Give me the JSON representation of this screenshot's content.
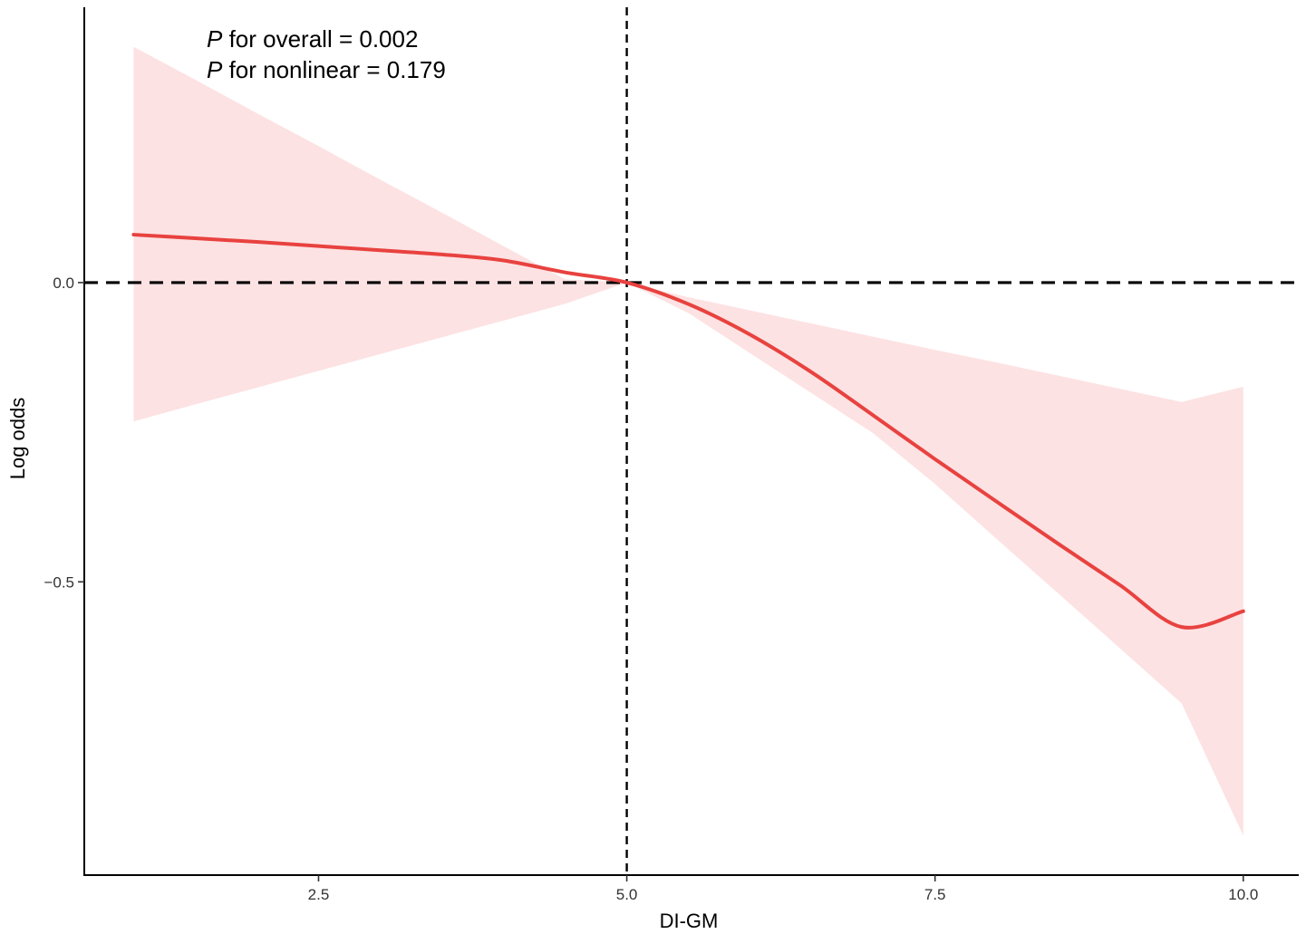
{
  "chart_data": {
    "type": "line",
    "xlabel": "DI-GM",
    "ylabel": "Log odds",
    "x_ticks": [
      "2.5",
      "5.0",
      "7.5",
      "10.0"
    ],
    "y_ticks": [
      "0.0",
      "-0.5"
    ],
    "xlim": [
      0.6,
      10.45
    ],
    "ylim": [
      -0.99,
      0.46
    ],
    "reference_lines": {
      "x": 5.0,
      "y": 0.0,
      "style": "dashed"
    },
    "annotations": [
      {
        "prefix": "P",
        "text": " for overall = 0.002"
      },
      {
        "prefix": "P",
        "text": " for nonlinear = 0.179"
      }
    ],
    "series": [
      {
        "x": [
          1,
          1.5,
          2,
          2.5,
          3,
          3.5,
          4,
          4.5,
          5,
          5.5,
          6,
          6.5,
          7,
          7.5,
          8,
          8.5,
          9,
          9.5,
          10
        ],
        "y": [
          0.08,
          0.074,
          0.068,
          0.061,
          0.054,
          0.047,
          0.037,
          0.017,
          0.0,
          -0.036,
          -0.087,
          -0.15,
          -0.222,
          -0.295,
          -0.366,
          -0.4365,
          -0.5055,
          -0.5755,
          -0.549
        ],
        "lower": [
          -0.232,
          -0.2035,
          -0.1755,
          -0.1475,
          -0.1195,
          -0.0915,
          -0.0635,
          -0.0355,
          0.0,
          -0.051,
          -0.118,
          -0.185,
          -0.252,
          -0.3365,
          -0.4285,
          -0.5195,
          -0.611,
          -0.703,
          -0.924
        ],
        "upper": [
          0.394,
          0.339,
          0.283,
          0.228,
          0.172,
          0.117,
          0.061,
          0.0055,
          0.0,
          -0.0245,
          -0.0465,
          -0.0685,
          -0.0905,
          -0.1125,
          -0.1335,
          -0.1555,
          -0.1775,
          -0.1995,
          -0.174
        ]
      }
    ],
    "line_color": "#e8423f",
    "band_color": "#fde2e3",
    "grid": false
  }
}
